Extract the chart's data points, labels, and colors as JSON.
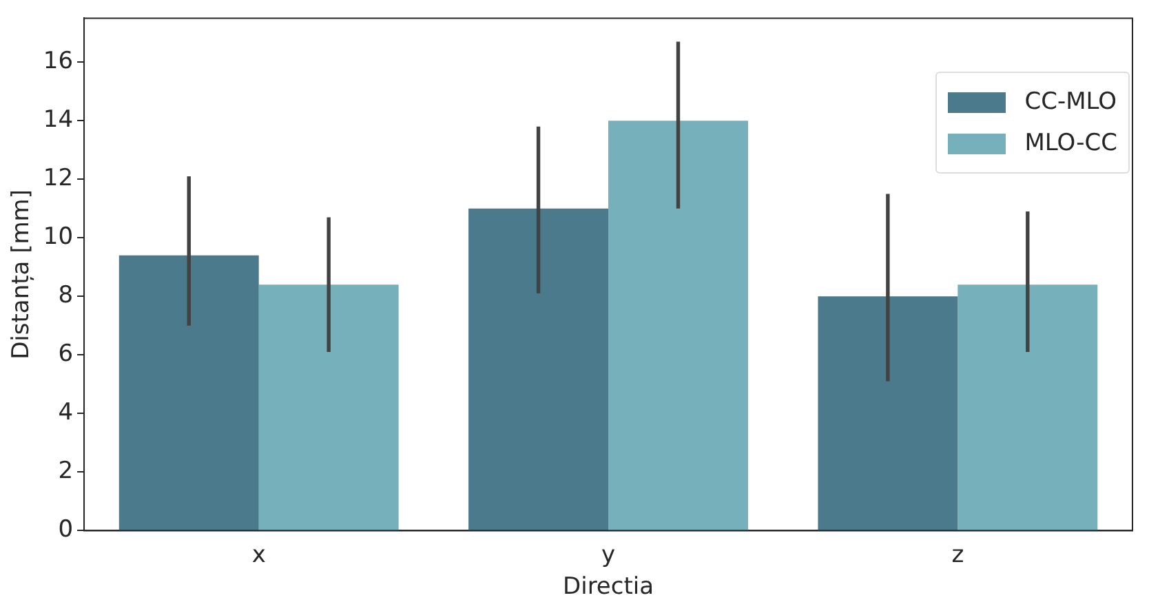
{
  "chart_data": {
    "type": "bar",
    "xlabel": "Directia",
    "ylabel": "Distanța [mm]",
    "categories": [
      "x",
      "y",
      "z"
    ],
    "series": [
      {
        "name": "CC-MLO",
        "color": "#4a7a8c",
        "values": [
          9.4,
          11.0,
          8.0
        ],
        "errors": [
          [
            7.0,
            12.1
          ],
          [
            8.1,
            13.8
          ],
          [
            5.1,
            11.5
          ]
        ]
      },
      {
        "name": "MLO-CC",
        "color": "#76b0ba",
        "values": [
          8.4,
          14.0,
          8.4
        ],
        "errors": [
          [
            6.1,
            10.7
          ],
          [
            11.0,
            16.7
          ],
          [
            6.1,
            10.9
          ]
        ]
      }
    ],
    "ylim": [
      0,
      17.5
    ],
    "yticks": [
      0,
      2,
      4,
      6,
      8,
      10,
      12,
      14,
      16
    ],
    "grid": false,
    "legend": "top right"
  }
}
